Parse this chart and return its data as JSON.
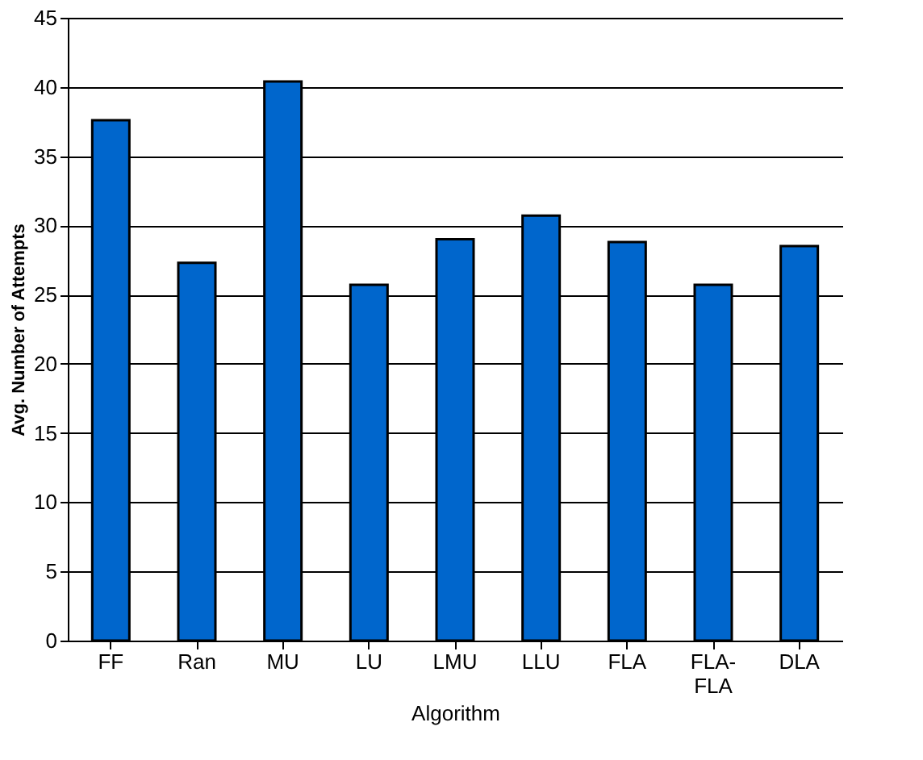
{
  "chart_data": {
    "type": "bar",
    "xlabel": "Algorithm",
    "ylabel": "Avg. Number of Attempts",
    "categories": [
      "FF",
      "Ran",
      "MU",
      "LU",
      "LMU",
      "LLU",
      "FLA",
      "FLA-FLA",
      "DLA"
    ],
    "values": [
      37.6,
      27.3,
      40.4,
      25.7,
      29.0,
      30.7,
      28.8,
      25.7,
      28.5
    ],
    "color": "#0066cc",
    "ylim": [
      0,
      45
    ],
    "yticks": [
      0,
      5,
      10,
      15,
      20,
      25,
      30,
      35,
      40,
      45
    ],
    "grid": "y"
  }
}
